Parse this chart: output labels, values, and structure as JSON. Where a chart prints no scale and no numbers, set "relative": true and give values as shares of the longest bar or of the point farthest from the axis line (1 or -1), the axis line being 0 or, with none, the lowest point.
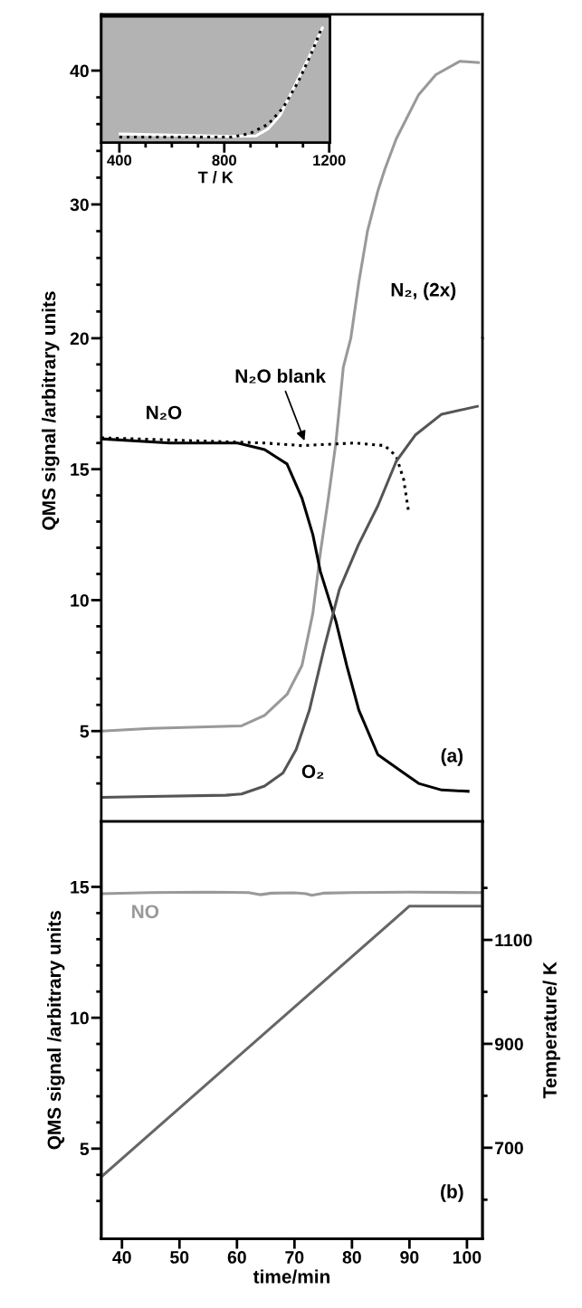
{
  "chart_data": [
    {
      "type": "line",
      "xlim": [
        36.4,
        102.7
      ],
      "ylim": [
        20,
        44.2
      ],
      "tick_labels": "y",
      "yticks": [
        {
          "value": 22,
          "label": null
        },
        {
          "value": 24,
          "label": null
        },
        {
          "value": 26,
          "label": null
        },
        {
          "value": 28,
          "label": null
        },
        30,
        {
          "value": 32,
          "label": null
        },
        {
          "value": 34,
          "label": null
        },
        {
          "value": 36,
          "label": null
        },
        {
          "value": 38,
          "label": null
        },
        40
      ],
      "series": [
        {
          "name": "N₂, (2x)",
          "color": "#999999",
          "x": [
            79.8,
            81.2,
            82.7,
            84.5,
            85.7,
            87.7,
            91.6,
            94.6,
            98.8,
            102.0
          ],
          "values": [
            20.0,
            24.2,
            28.0,
            31.0,
            32.6,
            34.9,
            38.2,
            39.7,
            40.7,
            40.6
          ]
        }
      ]
    },
    {
      "type": "line",
      "relative": true,
      "xlabel": "T / K",
      "xlim": [
        331,
        1203
      ],
      "xticks": [
        400,
        {
          "value": 500,
          "label": null
        },
        {
          "value": 600,
          "label": null
        },
        {
          "value": 700,
          "label": null
        },
        800,
        {
          "value": 900,
          "label": null
        },
        {
          "value": 1000,
          "label": null
        },
        {
          "value": 1100,
          "label": null
        },
        1200
      ],
      "series": [
        {
          "color": "#ffffff",
          "x": [
            403,
            829,
            921,
            967,
            1013,
            1059,
            1117,
            1174
          ],
          "values": [
            0.074,
            0.053,
            0.058,
            0.118,
            0.237,
            0.447,
            0.71,
            0.99
          ]
        },
        {
          "color": "#000000",
          "line_style": "dotted",
          "x": [
            400,
            829,
            898,
            967,
            1025,
            1082,
            1128,
            1174
          ],
          "values": [
            0.047,
            0.047,
            0.079,
            0.158,
            0.303,
            0.526,
            0.75,
            1.0
          ]
        }
      ]
    },
    {
      "type": "line",
      "ylabel": "QMS signal /arbitrary units",
      "xlim": [
        36.4,
        102.7
      ],
      "ylim": [
        1.55,
        20
      ],
      "tick_labels": "y",
      "yticks": [
        {
          "value": 3,
          "label": null
        },
        {
          "value": 4,
          "label": null
        },
        5,
        {
          "value": 6,
          "label": null
        },
        {
          "value": 7,
          "label": null
        },
        {
          "value": 8,
          "label": null
        },
        {
          "value": 9,
          "label": null
        },
        10,
        {
          "value": 11,
          "label": null
        },
        {
          "value": 12,
          "label": null
        },
        {
          "value": 13,
          "label": null
        },
        {
          "value": 14,
          "label": null
        },
        15,
        {
          "value": 16,
          "label": null
        },
        {
          "value": 17,
          "label": null
        },
        {
          "value": 18,
          "label": null
        },
        {
          "value": 19,
          "label": null
        },
        20
      ],
      "series": [
        {
          "color": "#999999",
          "x": [
            36.4,
            45,
            60.8,
            64.8,
            68.7,
            71.3,
            73.2,
            74.5,
            75.9,
            77.2,
            78.5,
            79.8
          ],
          "values": [
            5.0,
            5.1,
            5.2,
            5.6,
            6.4,
            7.5,
            9.5,
            11.8,
            13.9,
            16.0,
            18.9,
            20.0
          ]
        },
        {
          "name": "N₂O",
          "color": "#000000",
          "x": [
            36.4,
            48.3,
            60.1,
            64.8,
            68.7,
            71.3,
            73.2,
            74.5,
            77.2,
            79.1,
            81.2,
            84.5,
            89.0,
            91.6,
            95.6,
            100.2
          ],
          "values": [
            16.16,
            16.0,
            16.0,
            15.75,
            15.2,
            13.9,
            12.5,
            11.1,
            9.2,
            7.5,
            5.8,
            4.1,
            3.4,
            3.0,
            2.75,
            2.7
          ]
        },
        {
          "color": "#000000",
          "line_style": "dotted",
          "x": [
            36.4,
            64.8,
            71.3,
            80.5,
            85.7,
            87.7,
            89.0,
            89.9
          ],
          "values": [
            16.2,
            16.0,
            15.9,
            16.0,
            15.9,
            15.5,
            14.6,
            13.3
          ]
        },
        {
          "name": "O₂",
          "color": "#555555",
          "x": [
            36.4,
            45,
            58.1,
            60.8,
            64.8,
            68.0,
            70.3,
            72.6,
            75.2,
            77.8,
            81.1,
            84.5,
            87.7,
            91.0,
            95.6,
            101.8
          ],
          "values": [
            2.47,
            2.5,
            2.55,
            2.6,
            2.9,
            3.4,
            4.3,
            5.8,
            8.2,
            10.4,
            12.1,
            13.6,
            15.3,
            16.3,
            17.1,
            17.4
          ]
        }
      ],
      "annotations": [
        {
          "text": "N₂O blank",
          "x": 71.9,
          "y": 16.0
        },
        "(a)"
      ]
    },
    {
      "type": "line",
      "xlabel": "time/min",
      "ylabel": "QMS signal /arbitrary units",
      "y2label": "Temperature/ K",
      "xlim": [
        36.4,
        102.7
      ],
      "ylim": [
        1.56,
        17.5
      ],
      "y2lim": [
        525,
        1328
      ],
      "xticks": [
        40,
        50,
        60,
        70,
        80,
        90,
        100
      ],
      "yticks": [
        {
          "value": 3,
          "label": null
        },
        {
          "value": 4,
          "label": null
        },
        5,
        {
          "value": 6,
          "label": null
        },
        {
          "value": 7,
          "label": null
        },
        {
          "value": 8,
          "label": null
        },
        {
          "value": 9,
          "label": null
        },
        10,
        {
          "value": 11,
          "label": null
        },
        {
          "value": 12,
          "label": null
        },
        {
          "value": 13,
          "label": null
        },
        {
          "value": 14,
          "label": null
        },
        15
      ],
      "y2ticks": [
        {
          "value": 600,
          "label": null
        },
        700,
        {
          "value": 800,
          "label": null
        },
        900,
        {
          "value": 1000,
          "label": null
        },
        1100,
        {
          "value": 1200,
          "label": null
        }
      ],
      "series": [
        {
          "name": "NO",
          "color": "#999999",
          "x": [
            36.4,
            45,
            55,
            62,
            64,
            66,
            70,
            72,
            73,
            75,
            80,
            90,
            102.5
          ],
          "values": [
            14.74,
            14.78,
            14.8,
            14.78,
            14.7,
            14.76,
            14.77,
            14.74,
            14.68,
            14.76,
            14.78,
            14.8,
            14.78
          ]
        },
        {
          "color": "#666666",
          "axis": "y2",
          "x": [
            36.4,
            90,
            102.5
          ],
          "values": [
            644,
            1165,
            1165
          ]
        }
      ],
      "annotations": [
        "(b)"
      ]
    }
  ]
}
